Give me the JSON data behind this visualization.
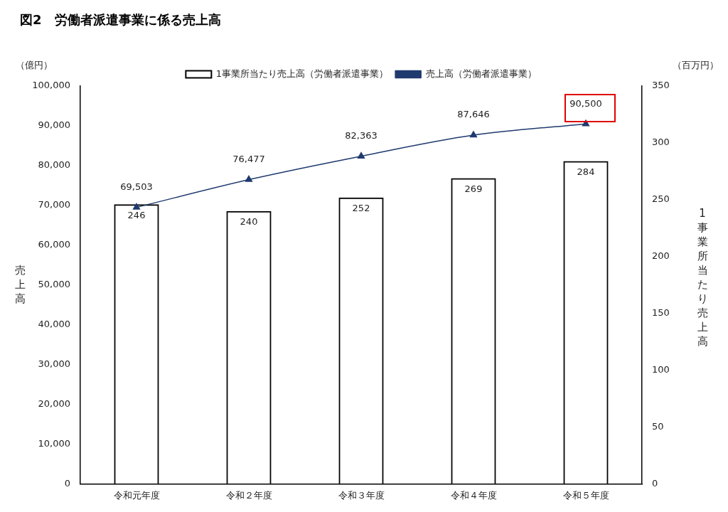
{
  "chart_data": {
    "type": "bar",
    "title": "図2　労働者派遣事業に係る売上高",
    "categories": [
      "令和元年度",
      "令和２年度",
      "令和３年度",
      "令和４年度",
      "令和５年度"
    ],
    "series": [
      {
        "name": "1事業所当たり売上高（労働者派遣事業）",
        "axis": "y2",
        "color": "#000000",
        "values": [
          246,
          240,
          252,
          269,
          284
        ],
        "value_labels": [
          "246",
          "240",
          "252",
          "269",
          "284"
        ]
      },
      {
        "name": "売上高（労働者派遣事業）",
        "type": "line",
        "color": "#1f3a6e",
        "values": [
          69503,
          76477,
          82363,
          87646,
          90500
        ],
        "value_labels": [
          "69,503",
          "76,477",
          "82,363",
          "87,646",
          "90,500"
        ]
      }
    ],
    "ylabel": "売上高",
    "y2label": "1事業所当たり売上高",
    "annotations": [
      "（億円）",
      "（百万円）"
    ],
    "ylim": [
      0,
      100000
    ],
    "yticks": [
      0,
      {
        "value": 10000,
        "label": "10,000"
      },
      {
        "value": 20000,
        "label": "20,000"
      },
      {
        "value": 30000,
        "label": "30,000"
      },
      {
        "value": 40000,
        "label": "40,000"
      },
      {
        "value": 50000,
        "label": "50,000"
      },
      {
        "value": 60000,
        "label": "60,000"
      },
      {
        "value": 70000,
        "label": "70,000"
      },
      {
        "value": 80000,
        "label": "80,000"
      },
      {
        "value": 90000,
        "label": "90,000"
      },
      {
        "value": 100000,
        "label": "100,000"
      }
    ],
    "y2lim": [
      0,
      350
    ],
    "y2ticks": [
      0,
      50,
      100,
      150,
      200,
      250,
      300,
      350
    ],
    "grid": false,
    "legend": "top",
    "marker": "triangle",
    "line_style": "solid"
  }
}
